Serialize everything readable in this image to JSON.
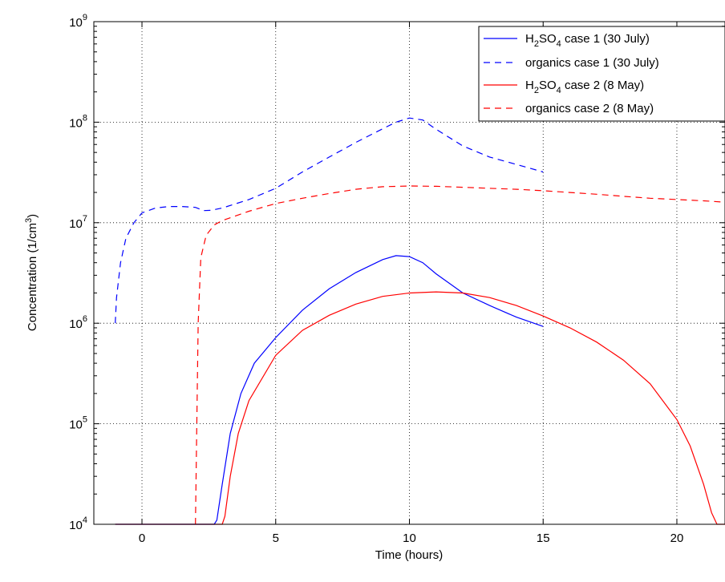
{
  "chart_data": {
    "type": "line",
    "xlabel": "Time (hours)",
    "ylabel": "Concentration (1/cm",
    "ylabel_sup": "3",
    "ylabel_close": ")",
    "xlim": [
      -1.8,
      21.8
    ],
    "ylim": [
      10000,
      1000000000
    ],
    "yscale": "log",
    "grid": true,
    "legend_position": "top-right",
    "x_ticks": [
      0,
      5,
      10,
      15,
      20
    ],
    "x_tick_labels": [
      "0",
      "5",
      "10",
      "15",
      "20"
    ],
    "y_ticks": [
      10000,
      100000,
      1000000,
      10000000,
      100000000,
      1000000000
    ],
    "y_tick_base": "10",
    "y_tick_exponents": [
      "4",
      "5",
      "6",
      "7",
      "8",
      "9"
    ],
    "series": [
      {
        "legend_prefix": "H",
        "legend_sub1": "2",
        "legend_mid": "SO",
        "legend_sub2": "4",
        "legend_suffix": " case 1 (30 July)",
        "color": "#0000ff",
        "dash": "solid",
        "points": [
          [
            -1,
            10000
          ],
          [
            2.7,
            10000
          ],
          [
            2.8,
            11000
          ],
          [
            3.0,
            25000
          ],
          [
            3.3,
            80000
          ],
          [
            3.7,
            200000
          ],
          [
            4.2,
            400000
          ],
          [
            5.0,
            720000
          ],
          [
            6.0,
            1350000
          ],
          [
            7.0,
            2200000
          ],
          [
            8.0,
            3200000
          ],
          [
            9.0,
            4300000
          ],
          [
            9.5,
            4700000
          ],
          [
            10.0,
            4600000
          ],
          [
            10.5,
            4000000
          ],
          [
            11.0,
            3100000
          ],
          [
            12.0,
            2000000
          ],
          [
            13.0,
            1500000
          ],
          [
            14.0,
            1150000
          ],
          [
            15.0,
            930000
          ]
        ]
      },
      {
        "legend_prefix": "organics case 1 (30 July)",
        "legend_sub1": "",
        "legend_mid": "",
        "legend_sub2": "",
        "legend_suffix": "",
        "color": "#0000ff",
        "dash": "dashed",
        "points": [
          [
            -1,
            1000000
          ],
          [
            -0.95,
            1800000
          ],
          [
            -0.8,
            4000000
          ],
          [
            -0.6,
            7000000
          ],
          [
            -0.3,
            10000000
          ],
          [
            0,
            12500000
          ],
          [
            0.5,
            14000000
          ],
          [
            1.0,
            14500000
          ],
          [
            1.5,
            14500000
          ],
          [
            2.0,
            14200000
          ],
          [
            2.3,
            13200000
          ],
          [
            2.6,
            13300000
          ],
          [
            3.0,
            14000000
          ],
          [
            4.0,
            17000000
          ],
          [
            5.0,
            22000000
          ],
          [
            6.0,
            32000000
          ],
          [
            7.0,
            45000000
          ],
          [
            8.0,
            63000000
          ],
          [
            9.0,
            86000000
          ],
          [
            9.5,
            100000000
          ],
          [
            10.0,
            110000000
          ],
          [
            10.5,
            105000000
          ],
          [
            11.0,
            85000000
          ],
          [
            12.0,
            58000000
          ],
          [
            13.0,
            45000000
          ],
          [
            14.0,
            38000000
          ],
          [
            15.0,
            32000000
          ]
        ]
      },
      {
        "legend_prefix": "H",
        "legend_sub1": "2",
        "legend_mid": "SO",
        "legend_sub2": "4",
        "legend_suffix": " case 2 (8 May)",
        "color": "#ff0000",
        "dash": "solid",
        "points": [
          [
            -1,
            10000
          ],
          [
            3.0,
            10000
          ],
          [
            3.1,
            12000
          ],
          [
            3.3,
            30000
          ],
          [
            3.6,
            80000
          ],
          [
            4.0,
            170000
          ],
          [
            5.0,
            480000
          ],
          [
            6.0,
            850000
          ],
          [
            7.0,
            1200000
          ],
          [
            8.0,
            1550000
          ],
          [
            9.0,
            1850000
          ],
          [
            10.0,
            2000000
          ],
          [
            11.0,
            2050000
          ],
          [
            12.0,
            2000000
          ],
          [
            13.0,
            1800000
          ],
          [
            14.0,
            1500000
          ],
          [
            15.0,
            1180000
          ],
          [
            16.0,
            900000
          ],
          [
            17.0,
            650000
          ],
          [
            18.0,
            430000
          ],
          [
            19.0,
            250000
          ],
          [
            20.0,
            110000
          ],
          [
            20.5,
            60000
          ],
          [
            21.0,
            25000
          ],
          [
            21.3,
            13000
          ],
          [
            21.5,
            10000
          ],
          [
            21.8,
            10000
          ]
        ]
      },
      {
        "legend_prefix": "organics case 2 (8 May)",
        "legend_sub1": "",
        "legend_mid": "",
        "legend_sub2": "",
        "legend_suffix": "",
        "color": "#ff0000",
        "dash": "dashed",
        "points": [
          [
            2.0,
            10000
          ],
          [
            2.05,
            100000
          ],
          [
            2.1,
            1000000
          ],
          [
            2.2,
            4500000
          ],
          [
            2.4,
            7500000
          ],
          [
            2.7,
            9500000
          ],
          [
            3.0,
            10500000
          ],
          [
            4.0,
            13000000
          ],
          [
            5.0,
            15500000
          ],
          [
            6.0,
            17500000
          ],
          [
            7.0,
            19500000
          ],
          [
            8.0,
            21500000
          ],
          [
            9.0,
            22800000
          ],
          [
            10.0,
            23200000
          ],
          [
            11.0,
            23000000
          ],
          [
            12.0,
            22500000
          ],
          [
            13.0,
            22000000
          ],
          [
            14.0,
            21500000
          ],
          [
            15.0,
            20800000
          ],
          [
            16.0,
            20000000
          ],
          [
            17.0,
            19200000
          ],
          [
            18.0,
            18300000
          ],
          [
            19.0,
            17500000
          ],
          [
            20.0,
            17000000
          ],
          [
            21.0,
            16500000
          ],
          [
            21.8,
            16000000
          ]
        ]
      }
    ]
  }
}
